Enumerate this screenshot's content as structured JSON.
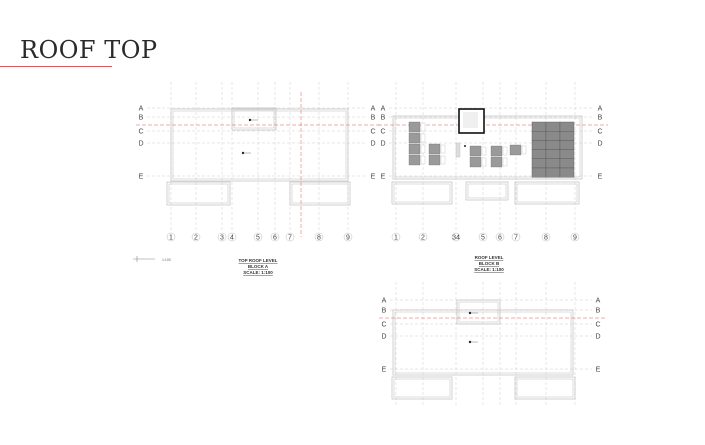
{
  "title": "ROOF TOP",
  "colors": {
    "accent": "#d9585f",
    "line": "#bdbdbd",
    "grid": "#cfcfcf"
  },
  "scale_bar_label": "1:100",
  "row_labels": [
    "A",
    "B",
    "C",
    "D",
    "E"
  ],
  "plans": [
    {
      "id": "block-a",
      "caption": [
        "TOP ROOF LEVEL",
        "BLOCK A",
        "SCALE: 1:100"
      ],
      "columns": [
        "1",
        "2",
        "3",
        "4",
        "5",
        "6",
        "7",
        "8",
        "9"
      ]
    },
    {
      "id": "block-b",
      "caption": [
        "ROOF LEVEL",
        "BLOCK B",
        "SCALE: 1:100"
      ],
      "columns": [
        "1",
        "2",
        "34",
        "5",
        "6",
        "7",
        "8",
        "9"
      ]
    },
    {
      "id": "block-b-top",
      "caption": [],
      "columns": []
    }
  ]
}
